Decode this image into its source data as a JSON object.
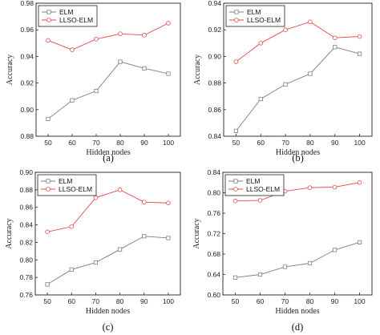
{
  "chart_data": [
    {
      "type": "line",
      "caption": "(a)",
      "x": [
        50,
        60,
        70,
        80,
        90,
        100
      ],
      "xlim": [
        45,
        105
      ],
      "xticks": [
        50,
        60,
        70,
        80,
        90,
        100
      ],
      "ylim": [
        0.88,
        0.98
      ],
      "yticks": [
        "0.88",
        "0.90",
        "0.92",
        "0.94",
        "0.96",
        "0.98"
      ],
      "xlabel": "Hidden nodes",
      "ylabel": "Accuracy",
      "legend": "top-left",
      "grid": false,
      "series": [
        {
          "name": "ELM",
          "color": "#7f7f7f",
          "marker": "square",
          "values": [
            0.893,
            0.907,
            0.914,
            0.936,
            0.931,
            0.927
          ]
        },
        {
          "name": "LLSO-ELM",
          "color": "#e8484d",
          "marker": "circle",
          "values": [
            0.952,
            0.945,
            0.953,
            0.957,
            0.956,
            0.965
          ]
        }
      ]
    },
    {
      "type": "line",
      "caption": "(b)",
      "x": [
        50,
        60,
        70,
        80,
        90,
        100
      ],
      "xlim": [
        45,
        105
      ],
      "xticks": [
        50,
        60,
        70,
        80,
        90,
        100
      ],
      "ylim": [
        0.84,
        0.94
      ],
      "yticks": [
        "0.84",
        "0.86",
        "0.88",
        "0.90",
        "0.92",
        "0.94"
      ],
      "xlabel": "Hidden nodes",
      "ylabel": "Accuracy",
      "legend": "top-left",
      "grid": false,
      "series": [
        {
          "name": "ELM",
          "color": "#7f7f7f",
          "marker": "square",
          "values": [
            0.844,
            0.868,
            0.879,
            0.887,
            0.907,
            0.902
          ]
        },
        {
          "name": "LLSO-ELM",
          "color": "#e8484d",
          "marker": "circle",
          "values": [
            0.896,
            0.91,
            0.92,
            0.926,
            0.914,
            0.915
          ]
        }
      ]
    },
    {
      "type": "line",
      "caption": "(c)",
      "x": [
        50,
        60,
        70,
        80,
        90,
        100
      ],
      "xlim": [
        45,
        105
      ],
      "xticks": [
        50,
        60,
        70,
        80,
        90,
        100
      ],
      "ylim": [
        0.76,
        0.9
      ],
      "yticks": [
        "0.76",
        "0.78",
        "0.80",
        "0.82",
        "0.84",
        "0.86",
        "0.88",
        "0.90"
      ],
      "xlabel": "Hidden nodes",
      "ylabel": "Accuracy",
      "legend": "top-left",
      "grid": false,
      "series": [
        {
          "name": "ELM",
          "color": "#7f7f7f",
          "marker": "square",
          "values": [
            0.772,
            0.789,
            0.797,
            0.812,
            0.827,
            0.825
          ]
        },
        {
          "name": "LLSO-ELM",
          "color": "#e8484d",
          "marker": "circle",
          "values": [
            0.832,
            0.838,
            0.871,
            0.88,
            0.866,
            0.865
          ]
        }
      ]
    },
    {
      "type": "line",
      "caption": "(d)",
      "x": [
        50,
        60,
        70,
        80,
        90,
        100
      ],
      "xlim": [
        45,
        105
      ],
      "xticks": [
        50,
        60,
        70,
        80,
        90,
        100
      ],
      "ylim": [
        0.6,
        0.84
      ],
      "yticks": [
        "0.60",
        "0.64",
        "0.68",
        "0.72",
        "0.76",
        "0.80",
        "0.84"
      ],
      "xlabel": "Hidden nodes",
      "ylabel": "Accuracy",
      "legend": "top-left",
      "grid": false,
      "series": [
        {
          "name": "ELM",
          "color": "#7f7f7f",
          "marker": "square",
          "values": [
            0.634,
            0.64,
            0.655,
            0.662,
            0.688,
            0.703
          ]
        },
        {
          "name": "LLSO-ELM",
          "color": "#e8484d",
          "marker": "circle",
          "values": [
            0.784,
            0.785,
            0.803,
            0.81,
            0.811,
            0.82
          ]
        }
      ]
    }
  ]
}
